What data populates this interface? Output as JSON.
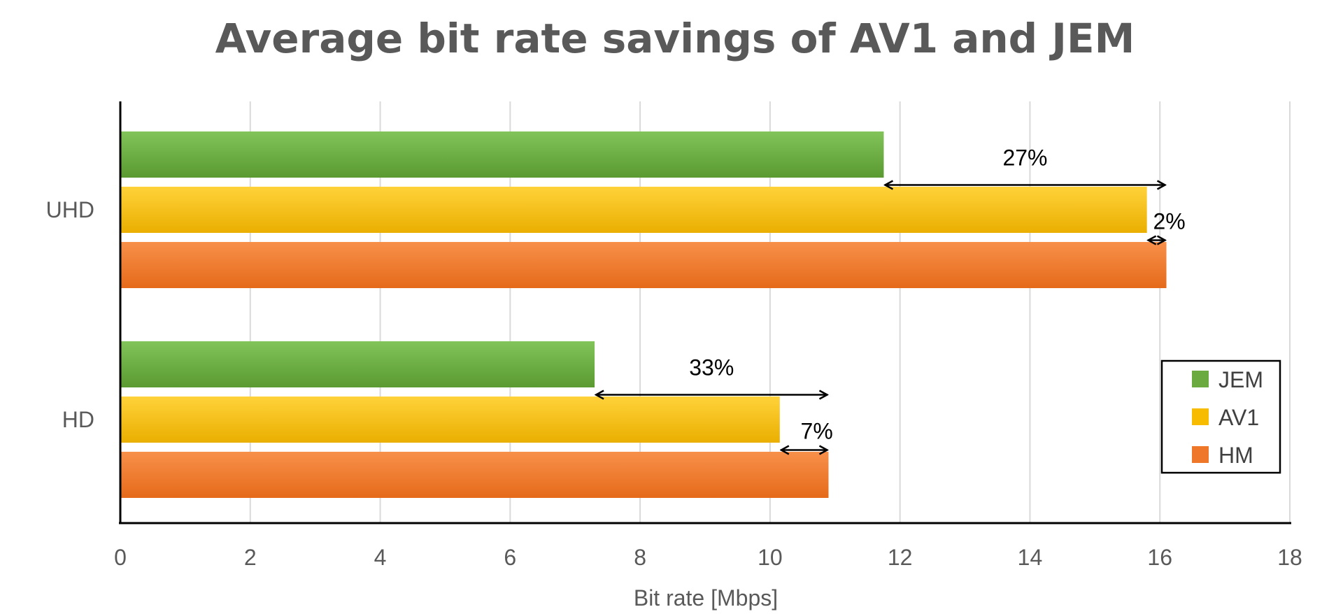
{
  "chart_data": {
    "type": "bar",
    "orientation": "horizontal",
    "title": "Average bit rate savings of AV1 and JEM",
    "xlabel": "Bit rate [Mbps]",
    "ylabel": "",
    "xlim": [
      0,
      18
    ],
    "xticks": [
      "0",
      "2",
      "4",
      "6",
      "8",
      "10",
      "12",
      "14",
      "16",
      "18"
    ],
    "grid": true,
    "legend_position": "bottom-right",
    "categories": [
      "UHD",
      "HD"
    ],
    "series": [
      {
        "name": "JEM",
        "color": "#6aaa3e",
        "values": [
          11.75,
          7.3
        ]
      },
      {
        "name": "AV1",
        "color": "#f7bc00",
        "values": [
          15.8,
          10.15
        ]
      },
      {
        "name": "HM",
        "color": "#ef772a",
        "values": [
          16.1,
          10.9
        ]
      }
    ],
    "annotations": [
      {
        "label": "27%",
        "category": "UHD",
        "from": 11.75,
        "to": 16.1,
        "between": "JEM-HM"
      },
      {
        "label": "2%",
        "category": "UHD",
        "from": 15.8,
        "to": 16.1,
        "between": "AV1-HM"
      },
      {
        "label": "33%",
        "category": "HD",
        "from": 7.3,
        "to": 10.9,
        "between": "JEM-HM"
      },
      {
        "label": "7%",
        "category": "HD",
        "from": 10.15,
        "to": 10.9,
        "between": "AV1-HM"
      }
    ]
  }
}
